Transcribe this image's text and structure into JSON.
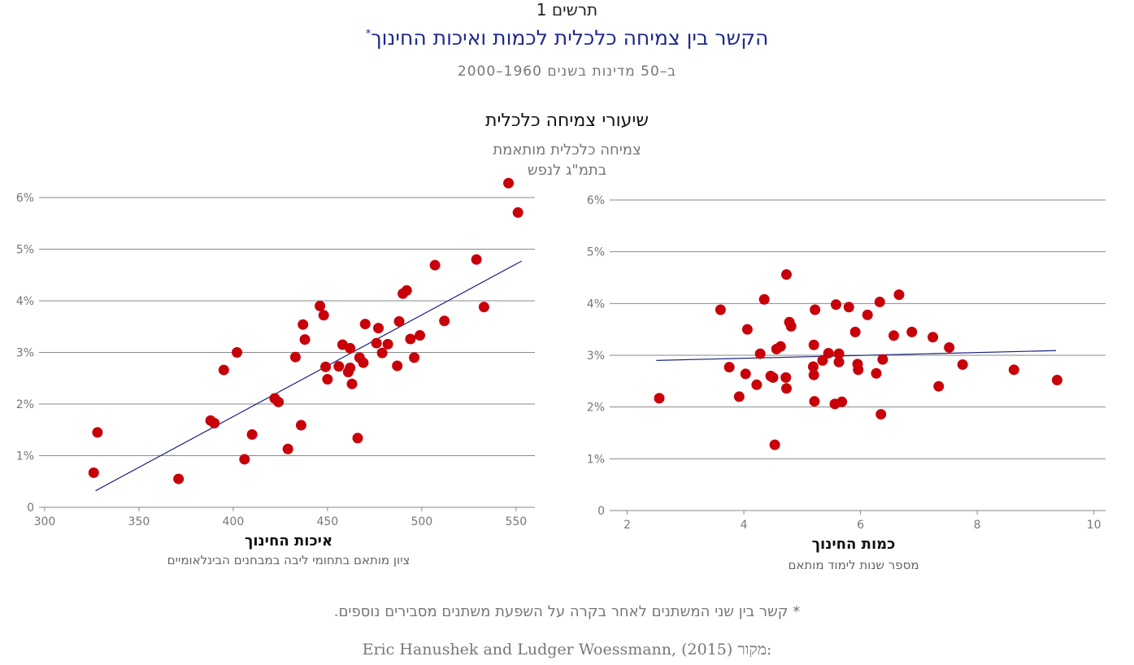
{
  "figure_label": "תרשים 1",
  "title": "הקשר בין צמיחה כלכלית לכמות ואיכות החינוך",
  "title_marker": "*",
  "subtitle": "ב–50 מדינות בשנים 1960–2000",
  "y_axis_title": "שיעורי צמיחה כלכלית",
  "y_axis_sub1": "צמיחה כלכלית מותאמת",
  "y_axis_sub2": "בתמ\"ג לנפש",
  "footnote": "* קשר בין שני המשתנים לאחר בקרה על השפעת משתנים מסבירים נוספים.",
  "source_label": "מקור:",
  "source_text": "Eric Hanushek and Ludger Woessmann, (2015)",
  "colors": {
    "point": "#c8000a",
    "trend": "#1a237e",
    "grid": "#8a8a8a"
  },
  "chart_data": [
    {
      "type": "scatter",
      "xlabel": "איכות החינוך",
      "xlabel_sub": "ציון מותאם בתחומי ליבה במבחנים הבינלאומיים",
      "xlim": [
        297,
        560
      ],
      "ylim": [
        0,
        6
      ],
      "x_ticks": [
        300,
        350,
        400,
        450,
        500,
        550
      ],
      "x_tick_labels": [
        "300",
        "350",
        "400",
        "450",
        "500",
        "550"
      ],
      "y_ticks": [
        0,
        1,
        2,
        3,
        4,
        5,
        6
      ],
      "y_tick_labels": [
        "0",
        "1%",
        "2%",
        "3%",
        "4%",
        "5%",
        "6%"
      ],
      "grid": true,
      "trend_line": {
        "x": [
          327,
          553
        ],
        "y": [
          0.32,
          4.77
        ]
      },
      "points": [
        {
          "x": 326,
          "y": 0.67
        },
        {
          "x": 328,
          "y": 1.45
        },
        {
          "x": 371,
          "y": 0.55
        },
        {
          "x": 388,
          "y": 1.68
        },
        {
          "x": 390,
          "y": 1.63
        },
        {
          "x": 395,
          "y": 2.66
        },
        {
          "x": 402,
          "y": 3.0
        },
        {
          "x": 406,
          "y": 0.93
        },
        {
          "x": 410,
          "y": 1.41
        },
        {
          "x": 422,
          "y": 2.11
        },
        {
          "x": 424,
          "y": 2.04
        },
        {
          "x": 429,
          "y": 1.13
        },
        {
          "x": 433,
          "y": 2.91
        },
        {
          "x": 436,
          "y": 1.59
        },
        {
          "x": 437,
          "y": 3.54
        },
        {
          "x": 438,
          "y": 3.25
        },
        {
          "x": 446,
          "y": 3.9
        },
        {
          "x": 448,
          "y": 3.72
        },
        {
          "x": 449,
          "y": 2.72
        },
        {
          "x": 450,
          "y": 2.48
        },
        {
          "x": 456,
          "y": 2.73
        },
        {
          "x": 458,
          "y": 3.15
        },
        {
          "x": 461,
          "y": 2.62
        },
        {
          "x": 462,
          "y": 2.7
        },
        {
          "x": 462,
          "y": 3.08
        },
        {
          "x": 463,
          "y": 2.39
        },
        {
          "x": 466,
          "y": 1.34
        },
        {
          "x": 467,
          "y": 2.9
        },
        {
          "x": 469,
          "y": 2.8
        },
        {
          "x": 470,
          "y": 3.55
        },
        {
          "x": 476,
          "y": 3.18
        },
        {
          "x": 477,
          "y": 3.47
        },
        {
          "x": 479,
          "y": 2.99
        },
        {
          "x": 482,
          "y": 3.16
        },
        {
          "x": 487,
          "y": 2.74
        },
        {
          "x": 488,
          "y": 3.6
        },
        {
          "x": 490,
          "y": 4.14
        },
        {
          "x": 492,
          "y": 4.2
        },
        {
          "x": 494,
          "y": 3.26
        },
        {
          "x": 496,
          "y": 2.9
        },
        {
          "x": 499,
          "y": 3.33
        },
        {
          "x": 507,
          "y": 4.69
        },
        {
          "x": 512,
          "y": 3.61
        },
        {
          "x": 529,
          "y": 4.8
        },
        {
          "x": 533,
          "y": 3.88
        },
        {
          "x": 546,
          "y": 6.28
        },
        {
          "x": 551,
          "y": 5.71
        }
      ]
    },
    {
      "type": "scatter",
      "xlabel": "כמות החינוך",
      "xlabel_sub": "מספר שנות לימוד מותאם",
      "xlim": [
        1.7,
        10.2
      ],
      "ylim": [
        0,
        6
      ],
      "x_ticks": [
        2,
        4,
        6,
        8,
        10
      ],
      "x_tick_labels": [
        "2",
        "4",
        "6",
        "8",
        "10"
      ],
      "y_ticks": [
        0,
        1,
        2,
        3,
        4,
        5,
        6
      ],
      "y_tick_labels": [
        "0",
        "1%",
        "2%",
        "3%",
        "4%",
        "5%",
        "6%"
      ],
      "grid": true,
      "trend_line": {
        "x": [
          2.5,
          9.35
        ],
        "y": [
          2.9,
          3.09
        ]
      },
      "points": [
        {
          "x": 2.55,
          "y": 2.17
        },
        {
          "x": 3.6,
          "y": 3.88
        },
        {
          "x": 3.75,
          "y": 2.77
        },
        {
          "x": 3.92,
          "y": 2.2
        },
        {
          "x": 4.03,
          "y": 2.64
        },
        {
          "x": 4.06,
          "y": 3.5
        },
        {
          "x": 4.22,
          "y": 2.43
        },
        {
          "x": 4.28,
          "y": 3.03
        },
        {
          "x": 4.35,
          "y": 4.08
        },
        {
          "x": 4.46,
          "y": 2.6
        },
        {
          "x": 4.5,
          "y": 2.57
        },
        {
          "x": 4.53,
          "y": 1.27
        },
        {
          "x": 4.56,
          "y": 3.12
        },
        {
          "x": 4.63,
          "y": 3.17
        },
        {
          "x": 4.72,
          "y": 2.57
        },
        {
          "x": 4.73,
          "y": 2.36
        },
        {
          "x": 4.73,
          "y": 4.56
        },
        {
          "x": 4.78,
          "y": 3.64
        },
        {
          "x": 4.81,
          "y": 3.56
        },
        {
          "x": 5.19,
          "y": 2.78
        },
        {
          "x": 5.2,
          "y": 2.62
        },
        {
          "x": 5.2,
          "y": 3.2
        },
        {
          "x": 5.21,
          "y": 2.11
        },
        {
          "x": 5.22,
          "y": 3.88
        },
        {
          "x": 5.35,
          "y": 2.9
        },
        {
          "x": 5.45,
          "y": 3.04
        },
        {
          "x": 5.56,
          "y": 2.06
        },
        {
          "x": 5.58,
          "y": 3.98
        },
        {
          "x": 5.63,
          "y": 3.03
        },
        {
          "x": 5.63,
          "y": 2.87
        },
        {
          "x": 5.68,
          "y": 2.1
        },
        {
          "x": 5.8,
          "y": 3.93
        },
        {
          "x": 5.91,
          "y": 3.45
        },
        {
          "x": 5.95,
          "y": 2.83
        },
        {
          "x": 5.96,
          "y": 2.72
        },
        {
          "x": 6.12,
          "y": 3.78
        },
        {
          "x": 6.27,
          "y": 2.65
        },
        {
          "x": 6.33,
          "y": 4.03
        },
        {
          "x": 6.35,
          "y": 1.86
        },
        {
          "x": 6.38,
          "y": 2.92
        },
        {
          "x": 6.57,
          "y": 3.38
        },
        {
          "x": 6.66,
          "y": 4.17
        },
        {
          "x": 6.88,
          "y": 3.45
        },
        {
          "x": 7.24,
          "y": 3.35
        },
        {
          "x": 7.34,
          "y": 2.4
        },
        {
          "x": 7.52,
          "y": 3.15
        },
        {
          "x": 7.75,
          "y": 2.82
        },
        {
          "x": 8.63,
          "y": 2.72
        },
        {
          "x": 9.37,
          "y": 2.52
        }
      ]
    }
  ]
}
